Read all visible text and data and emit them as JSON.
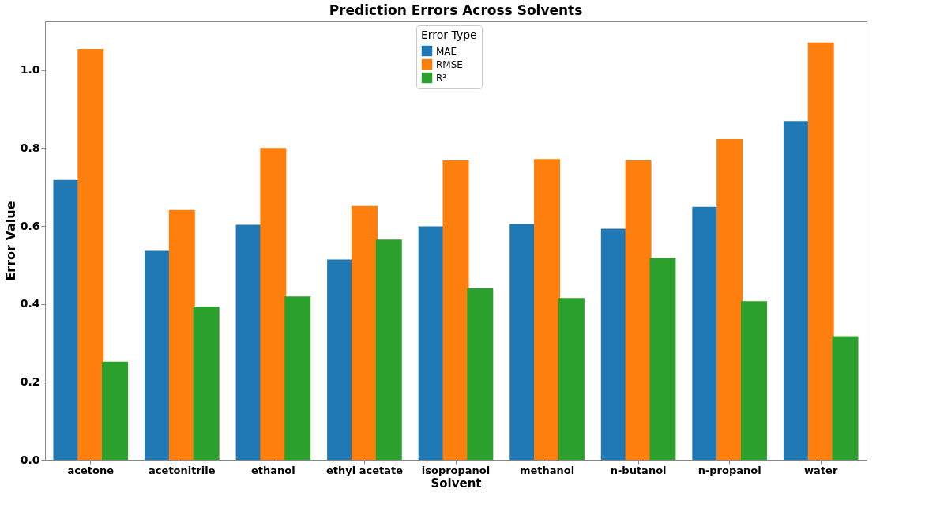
{
  "chart_data": {
    "type": "bar",
    "title": "Prediction Errors Across Solvents",
    "xlabel": "Solvent",
    "ylabel": "Error Value",
    "legend_title": "Error Type",
    "legend": "top",
    "categories": [
      "acetone",
      "acetonitrile",
      "ethanol",
      "ethyl acetate",
      "isopropanol",
      "methanol",
      "n-butanol",
      "n-propanol",
      "water"
    ],
    "series": [
      {
        "name": "MAE",
        "color": "#1f77b4",
        "values": [
          0.718,
          0.536,
          0.603,
          0.514,
          0.599,
          0.605,
          0.593,
          0.649,
          0.869
        ]
      },
      {
        "name": "RMSE",
        "color": "#ff7f0e",
        "values": [
          1.054,
          0.641,
          0.8,
          0.651,
          0.768,
          0.772,
          0.768,
          0.823,
          1.071
        ]
      },
      {
        "name": "R²",
        "color": "#2ca02c",
        "values": [
          0.252,
          0.393,
          0.419,
          0.565,
          0.44,
          0.415,
          0.518,
          0.407,
          0.317
        ]
      }
    ],
    "ylim": [
      0,
      1.125
    ],
    "yticks": [
      {
        "value": 0,
        "label": "0.0"
      },
      0.2,
      0.4,
      0.6,
      0.8,
      {
        "value": 1,
        "label": "1.0"
      }
    ],
    "grid": false
  }
}
